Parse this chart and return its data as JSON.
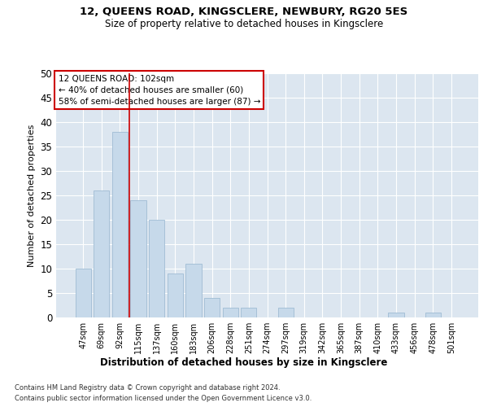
{
  "title1": "12, QUEENS ROAD, KINGSCLERE, NEWBURY, RG20 5ES",
  "title2": "Size of property relative to detached houses in Kingsclere",
  "xlabel": "Distribution of detached houses by size in Kingsclere",
  "ylabel": "Number of detached properties",
  "footnote1": "Contains HM Land Registry data © Crown copyright and database right 2024.",
  "footnote2": "Contains public sector information licensed under the Open Government Licence v3.0.",
  "categories": [
    "47sqm",
    "69sqm",
    "92sqm",
    "115sqm",
    "137sqm",
    "160sqm",
    "183sqm",
    "206sqm",
    "228sqm",
    "251sqm",
    "274sqm",
    "297sqm",
    "319sqm",
    "342sqm",
    "365sqm",
    "387sqm",
    "410sqm",
    "433sqm",
    "456sqm",
    "478sqm",
    "501sqm"
  ],
  "values": [
    10,
    26,
    38,
    24,
    20,
    9,
    11,
    4,
    2,
    2,
    0,
    2,
    0,
    0,
    0,
    0,
    0,
    1,
    0,
    1,
    0
  ],
  "bar_color": "#c6d9ea",
  "bar_edge_color": "#9fbcd4",
  "vline_color": "#cc0000",
  "annotation_title": "12 QUEENS ROAD: 102sqm",
  "annotation_line1": "← 40% of detached houses are smaller (60)",
  "annotation_line2": "58% of semi-detached houses are larger (87) →",
  "annotation_box_color": "#ffffff",
  "annotation_box_edge": "#cc0000",
  "ylim": [
    0,
    50
  ],
  "yticks": [
    0,
    5,
    10,
    15,
    20,
    25,
    30,
    35,
    40,
    45,
    50
  ],
  "fig_bg_color": "#ffffff",
  "plot_bg_color": "#dce6f0"
}
